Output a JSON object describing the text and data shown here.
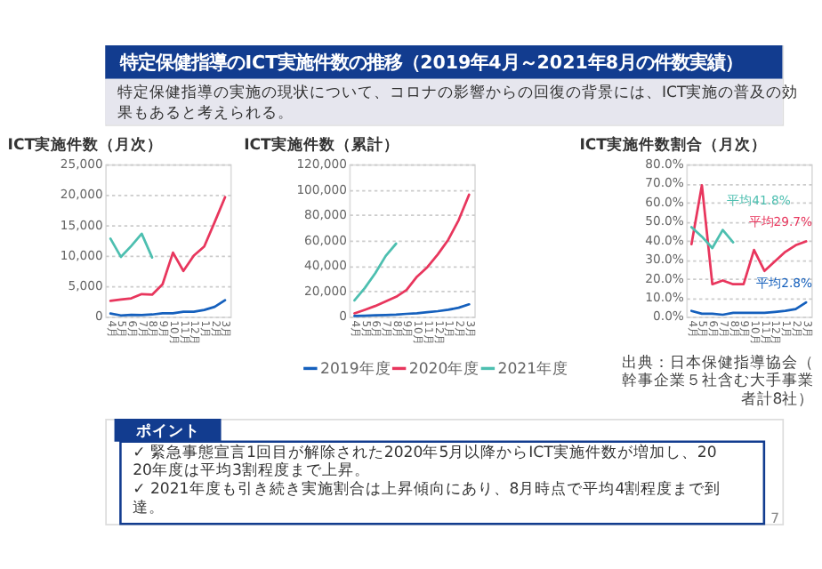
{
  "chart_data": [
    {
      "type": "other",
      "title": "特定保健指導のICT実施件数の推移（2019年4月～2021年8月の件数実績）",
      "subtitle": "特定保健指導の実施の現状について、コロナの影響からの回復の背景には、ICT実施の普及の効果もあると考えられる。"
    },
    {
      "type": "line",
      "title": "ICT実施件数（月次）",
      "categories": [
        "4月",
        "5月",
        "6月",
        "7月",
        "8月",
        "9月",
        "10月",
        "11月",
        "12月",
        "1月",
        "2月",
        "3月"
      ],
      "series": [
        {
          "color": "#1560bd",
          "values": [
            500,
            200,
            300,
            250,
            350,
            550,
            550,
            800,
            800,
            1100,
            1600,
            2700
          ]
        },
        {
          "color": "#e8365d",
          "values": [
            2600,
            2800,
            3000,
            3700,
            3600,
            5300,
            10500,
            7500,
            10000,
            11500,
            15500,
            19600
          ]
        },
        {
          "color": "#4dbfb0",
          "values": [
            12800,
            9800,
            11600,
            13600,
            9700,
            null,
            null,
            null,
            null,
            null,
            null,
            null
          ]
        }
      ],
      "ylim": [
        0,
        25000
      ],
      "yticks": [
        0,
        {
          "value": 5000,
          "label": "5,000"
        },
        {
          "value": 10000,
          "label": "10,000"
        },
        {
          "value": 15000,
          "label": "15,000"
        },
        {
          "value": 20000,
          "label": "20,000"
        },
        {
          "value": 25000,
          "label": "25,000"
        }
      ],
      "grid": "y"
    },
    {
      "type": "line",
      "title": "ICT実施件数（累計）",
      "categories": [
        "4月",
        "5月",
        "6月",
        "7月",
        "8月",
        "9月",
        "10月",
        "11月",
        "12月",
        "1月",
        "2月",
        "3月"
      ],
      "series": [
        {
          "name": "2019年度",
          "color": "#1560bd",
          "values": [
            500,
            700,
            1000,
            1300,
            1600,
            2200,
            2700,
            3500,
            4300,
            5400,
            7000,
            9700
          ]
        },
        {
          "name": "2020年度",
          "color": "#e8365d",
          "values": [
            2600,
            5400,
            8400,
            12000,
            15600,
            21000,
            31500,
            39000,
            49000,
            60500,
            76000,
            96000
          ]
        },
        {
          "name": "2021年度",
          "color": "#4dbfb0",
          "values": [
            12800,
            22600,
            34200,
            47800,
            57500,
            null,
            null,
            null,
            null,
            null,
            null,
            null
          ]
        }
      ],
      "ylim": [
        0,
        120000
      ],
      "yticks": [
        0,
        {
          "value": 20000,
          "label": "20,000"
        },
        {
          "value": 40000,
          "label": "40,000"
        },
        {
          "value": 60000,
          "label": "60,000"
        },
        {
          "value": 80000,
          "label": "80,000"
        },
        {
          "value": 100000,
          "label": "100,000"
        },
        {
          "value": 120000,
          "label": "120,000"
        }
      ],
      "grid": "y",
      "legend": "bottom"
    },
    {
      "type": "line",
      "title": "ICT実施件数割合（月次）",
      "categories": [
        "4月",
        "5月",
        "6月",
        "7月",
        "8月",
        "9月",
        "10月",
        "11月",
        "12月",
        "1月",
        "2月",
        "3月"
      ],
      "series": [
        {
          "color": "#1560bd",
          "values": [
            3,
            1.5,
            1.5,
            1,
            2,
            2,
            2,
            2,
            2.5,
            3,
            4,
            7.5
          ]
        },
        {
          "color": "#e8365d",
          "values": [
            38,
            69,
            17,
            19,
            17,
            17,
            35,
            24,
            29,
            34,
            37.5,
            39.5
          ]
        },
        {
          "color": "#4dbfb0",
          "values": [
            47,
            42,
            36,
            45.5,
            39,
            null,
            null,
            null,
            null,
            null,
            null,
            null
          ]
        }
      ],
      "ylim": [
        0,
        80
      ],
      "yticks": [
        {
          "value": 0,
          "label": "0.0%"
        },
        {
          "value": 10,
          "label": "10.0%"
        },
        {
          "value": 20,
          "label": "20.0%"
        },
        {
          "value": 30,
          "label": "30.0%"
        },
        {
          "value": 40,
          "label": "40.0%"
        },
        {
          "value": 50,
          "label": "50.0%"
        },
        {
          "value": 60,
          "label": "60.0%"
        },
        {
          "value": 70,
          "label": "70.0%"
        },
        {
          "value": 80,
          "label": "80.0%"
        }
      ],
      "grid": "y",
      "annotations": [
        "平均2.8%",
        "平均29.7%",
        "平均41.8%",
        "出典：日本保健指導協会（幹事企業５社含む大手事業者計8社）"
      ]
    },
    {
      "type": "other",
      "annotations": [
        "ポイント",
        "✓ 緊急事態宣言1回目が解除された2020年5月以降からICT実施件数が増加し、2020年度は平均3割程度まで上昇。",
        "✓ 2021年度も引き続き実施割合は上昇傾向にあり、8月時点で平均4割程度まで到達。",
        "7"
      ]
    }
  ]
}
